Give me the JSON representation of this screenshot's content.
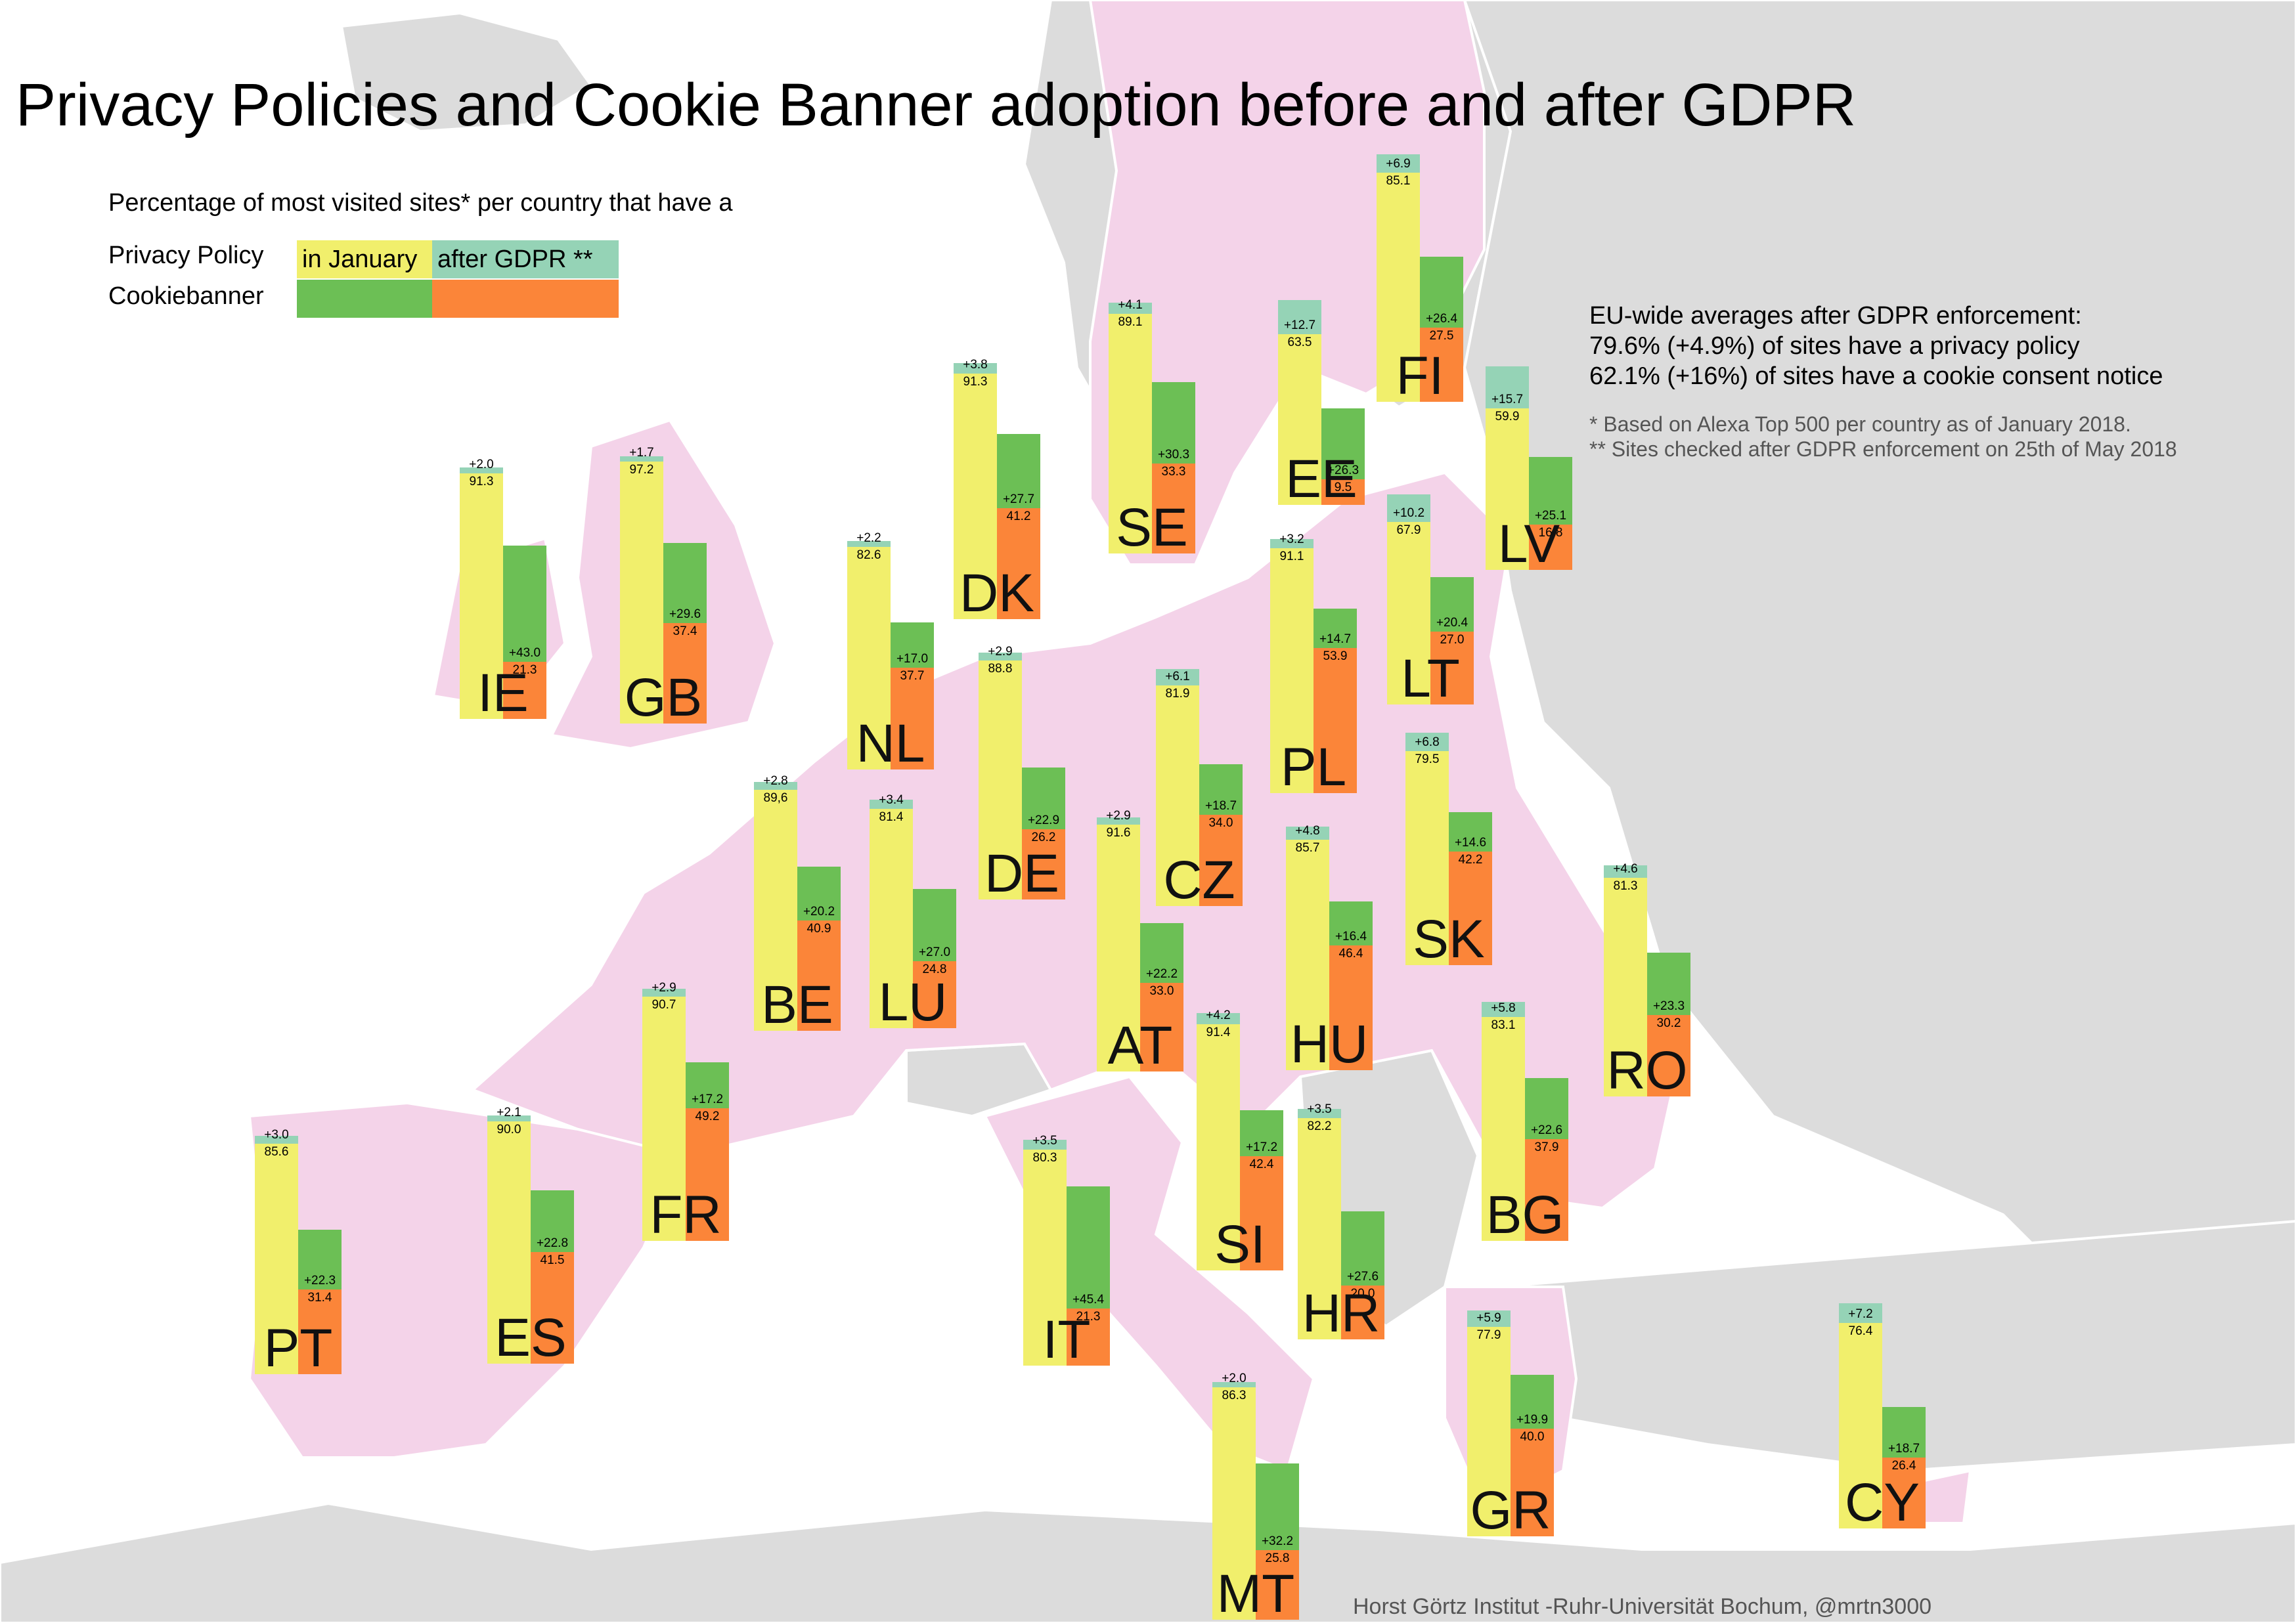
{
  "title": "Privacy Policies and Cookie Banner adoption before and after GDPR",
  "legend": {
    "subtitle": "Percentage of most visited sites* per country that have a",
    "row1_label": "Privacy Policy",
    "row2_label": "Cookiebanner",
    "col1_label": "in January",
    "col2_label": "after GDPR **",
    "colors": {
      "privacy_january": "#f1ef6c",
      "privacy_after": "#95d3b6",
      "cookie_january": "#6cbf55",
      "cookie_after": "#fb8539"
    }
  },
  "summary": {
    "heading": "EU-wide averages after GDPR enforcement:",
    "line1": "79.6% (+4.9%) of sites have a privacy policy",
    "line2": "62.1% (+16%) of sites have a cookie consent notice"
  },
  "footnotes": {
    "note1": "* Based on Alexa Top 500 per country as of January 2018.",
    "note2": "** Sites checked after GDPR enforcement on 25th of May 2018"
  },
  "credit": "Horst Görtz Institut -Ruhr-Universität Bochum, @mrtn3000",
  "map_colors": {
    "eu_land": "#f4d3e9",
    "non_eu_land": "#dcdcdc",
    "sea": "#ffffff"
  },
  "chart_data": {
    "type": "bar",
    "countries": [
      {
        "code": "IE",
        "privacy_jan": "91.3",
        "privacy_delta": "+2.0",
        "cookie_jan": "21.3",
        "cookie_delta": "+43.0"
      },
      {
        "code": "GB",
        "privacy_jan": "97.2",
        "privacy_delta": "+1.7",
        "cookie_jan": "37.4",
        "cookie_delta": "+29.6"
      },
      {
        "code": "NL",
        "privacy_jan": "82.6",
        "privacy_delta": "+2.2",
        "cookie_jan": "37.7",
        "cookie_delta": "+17.0"
      },
      {
        "code": "DK",
        "privacy_jan": "91.3",
        "privacy_delta": "+3.8",
        "cookie_jan": "41.2",
        "cookie_delta": "+27.7"
      },
      {
        "code": "SE",
        "privacy_jan": "89.1",
        "privacy_delta": "+4.1",
        "cookie_jan": "33.3",
        "cookie_delta": "+30.3"
      },
      {
        "code": "EE",
        "privacy_jan": "63.5",
        "privacy_delta": "+12.7",
        "cookie_jan": "9.5",
        "cookie_delta": "+26.3"
      },
      {
        "code": "FI",
        "privacy_jan": "85.1",
        "privacy_delta": "+6.9",
        "cookie_jan": "27.5",
        "cookie_delta": "+26.4"
      },
      {
        "code": "LV",
        "privacy_jan": "59.9",
        "privacy_delta": "+15.7",
        "cookie_jan": "16.8",
        "cookie_delta": "+25.1"
      },
      {
        "code": "LT",
        "privacy_jan": "67.9",
        "privacy_delta": "+10.2",
        "cookie_jan": "27.0",
        "cookie_delta": "+20.4"
      },
      {
        "code": "PL",
        "privacy_jan": "91.1",
        "privacy_delta": "+3.2",
        "cookie_jan": "53.9",
        "cookie_delta": "+14.7"
      },
      {
        "code": "BE",
        "privacy_jan": "89,6",
        "privacy_delta": "+2.8",
        "cookie_jan": "40.9",
        "cookie_delta": "+20.2"
      },
      {
        "code": "LU",
        "privacy_jan": "81.4",
        "privacy_delta": "+3.4",
        "cookie_jan": "24.8",
        "cookie_delta": "+27.0"
      },
      {
        "code": "DE",
        "privacy_jan": "88.8",
        "privacy_delta": "+2.9",
        "cookie_jan": "26.2",
        "cookie_delta": "+22.9"
      },
      {
        "code": "CZ",
        "privacy_jan": "81.9",
        "privacy_delta": "+6.1",
        "cookie_jan": "34.0",
        "cookie_delta": "+18.7"
      },
      {
        "code": "SK",
        "privacy_jan": "79.5",
        "privacy_delta": "+6.8",
        "cookie_jan": "42.2",
        "cookie_delta": "+14.6"
      },
      {
        "code": "AT",
        "privacy_jan": "91.6",
        "privacy_delta": "+2.9",
        "cookie_jan": "33.0",
        "cookie_delta": "+22.2"
      },
      {
        "code": "HU",
        "privacy_jan": "85.7",
        "privacy_delta": "+4.8",
        "cookie_jan": "46.4",
        "cookie_delta": "+16.4"
      },
      {
        "code": "RO",
        "privacy_jan": "81.3",
        "privacy_delta": "+4.6",
        "cookie_jan": "30.2",
        "cookie_delta": "+23.3"
      },
      {
        "code": "FR",
        "privacy_jan": "90.7",
        "privacy_delta": "+2.9",
        "cookie_jan": "49.2",
        "cookie_delta": "+17.2"
      },
      {
        "code": "SI",
        "privacy_jan": "91.4",
        "privacy_delta": "+4.2",
        "cookie_jan": "42.4",
        "cookie_delta": "+17.2"
      },
      {
        "code": "BG",
        "privacy_jan": "83.1",
        "privacy_delta": "+5.8",
        "cookie_jan": "37.9",
        "cookie_delta": "+22.6"
      },
      {
        "code": "PT",
        "privacy_jan": "85.6",
        "privacy_delta": "+3.0",
        "cookie_jan": "31.4",
        "cookie_delta": "+22.3"
      },
      {
        "code": "ES",
        "privacy_jan": "90.0",
        "privacy_delta": "+2.1",
        "cookie_jan": "41.5",
        "cookie_delta": "+22.8"
      },
      {
        "code": "IT",
        "privacy_jan": "80.3",
        "privacy_delta": "+3.5",
        "cookie_jan": "21.3",
        "cookie_delta": "+45.4"
      },
      {
        "code": "HR",
        "privacy_jan": "82.2",
        "privacy_delta": "+3.5",
        "cookie_jan": "20.0",
        "cookie_delta": "+27.6"
      },
      {
        "code": "GR",
        "privacy_jan": "77.9",
        "privacy_delta": "+5.9",
        "cookie_jan": "40.0",
        "cookie_delta": "+19.9"
      },
      {
        "code": "CY",
        "privacy_jan": "76.4",
        "privacy_delta": "+7.2",
        "cookie_jan": "26.4",
        "cookie_delta": "+18.7"
      },
      {
        "code": "MT",
        "privacy_jan": "86.3",
        "privacy_delta": "+2.0",
        "cookie_jan": "25.8",
        "cookie_delta": "+32.2"
      }
    ]
  }
}
